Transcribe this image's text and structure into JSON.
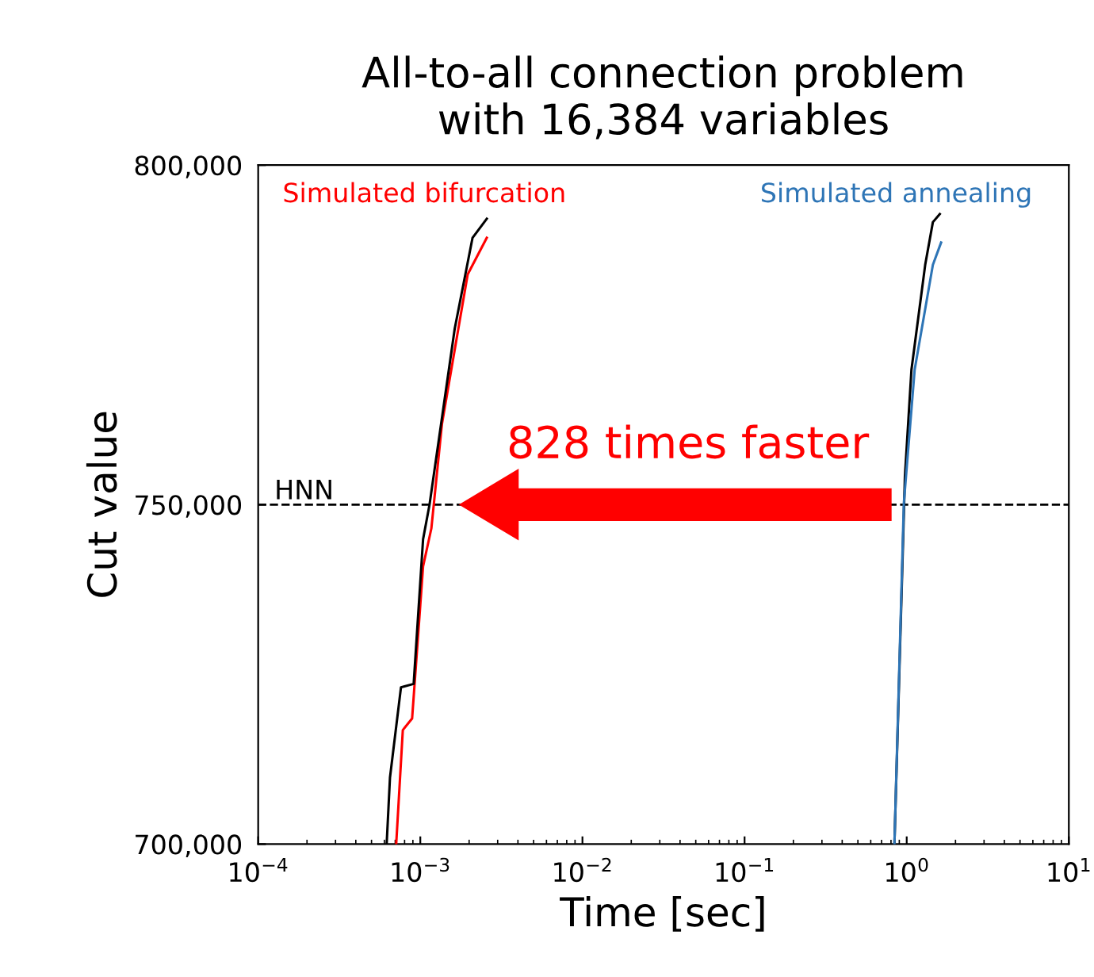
{
  "chart_data": {
    "type": "line",
    "title": "All-to-all connection problem\nwith 16,384 variables",
    "xlabel": "Time [sec]",
    "ylabel": "Cut value",
    "log": "x",
    "xlim": [
      0.0001,
      10
    ],
    "xticks": [
      {
        "value": 0.0001,
        "label": "10$^{−4}$"
      },
      {
        "value": 0.001,
        "label": "10$^{−3}$"
      },
      {
        "value": 0.01,
        "label": "10$^{−2}$"
      },
      {
        "value": 0.1,
        "label": "10$^{−1}$"
      },
      {
        "value": 1,
        "label": "10$^{0}$"
      },
      {
        "value": 10,
        "label": "10$^{1}$"
      }
    ],
    "ylim": [
      700000,
      800000
    ],
    "yticks": [
      {
        "value": 700000,
        "label": "700,000"
      },
      {
        "value": 750000,
        "label": "750,000"
      },
      {
        "value": 800000,
        "label": "800,000"
      }
    ],
    "grid": false,
    "legend": false,
    "marker": "none",
    "line_style": "solid",
    "series": [
      {
        "name": "Simulated bifurcation",
        "color": "#ff0000",
        "x": [
          0.00071,
          0.00078,
          0.00089,
          0.00104,
          0.00117,
          0.00136,
          0.00196,
          0.00257
        ],
        "values": [
          700000,
          716800,
          718500,
          740900,
          746500,
          761900,
          783900,
          789300
        ]
      },
      {
        "color": "#000000",
        "x": [
          0.00062,
          0.00065,
          0.00076,
          0.00091,
          0.00104,
          0.00114,
          0.00163,
          0.0021,
          0.00257
        ],
        "values": [
          700000,
          709800,
          723100,
          723600,
          744900,
          750000,
          775900,
          789300,
          792100
        ]
      },
      {
        "color": "#000000",
        "x": [
          0.84,
          0.975,
          1.07,
          1.3,
          1.45,
          1.6
        ],
        "values": [
          700000,
          754200,
          769900,
          785300,
          791600,
          792800
        ]
      },
      {
        "name": "Simulated annealing",
        "color": "#2e75b6",
        "x": [
          0.84,
          0.96,
          1.12,
          1.45,
          1.63
        ],
        "values": [
          700000,
          750200,
          769900,
          785300,
          788600
        ]
      }
    ],
    "ref_lines": [
      {
        "axis": "y",
        "value": 750000,
        "label": "HNN",
        "color": "#000000",
        "line_style": "dashed"
      }
    ],
    "annotations": [
      "828 times faster"
    ]
  }
}
